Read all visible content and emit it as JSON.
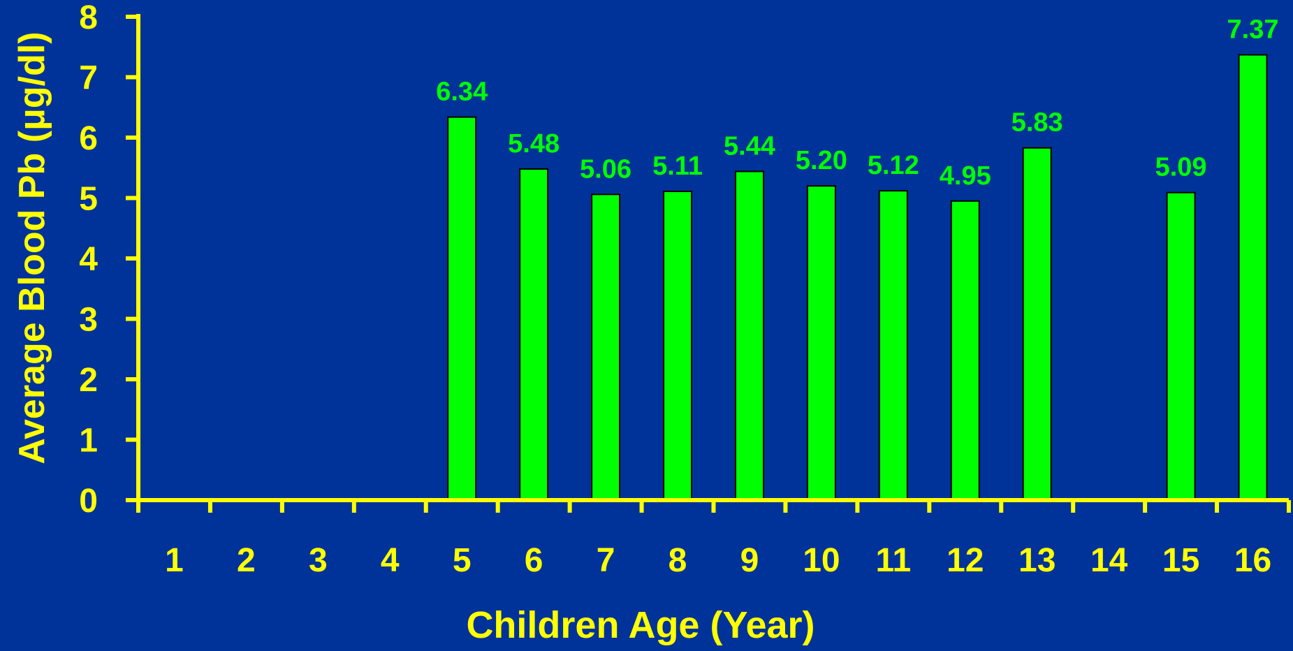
{
  "colors": {
    "background": "#003399",
    "axis": "#ffff00",
    "bar_fill": "#00ff00",
    "bar_stroke": "#000000",
    "data_label": "#00ff00",
    "tick_label": "#ffff00",
    "axis_title": "#ffff00"
  },
  "chart_data": {
    "type": "bar",
    "title": "",
    "xlabel": "Children Age (Year)",
    "ylabel": "Average Blood Pb (μg/dl)",
    "categories": [
      "1",
      "2",
      "3",
      "4",
      "5",
      "6",
      "7",
      "8",
      "9",
      "10",
      "11",
      "12",
      "13",
      "14",
      "15",
      "16"
    ],
    "values": [
      null,
      null,
      null,
      null,
      6.34,
      5.48,
      5.06,
      5.11,
      5.44,
      5.2,
      5.12,
      4.95,
      5.83,
      null,
      5.09,
      7.37
    ],
    "value_labels": [
      "",
      "",
      "",
      "",
      "6.34",
      "5.48",
      "5.06",
      "5.11",
      "5.44",
      "5.20",
      "5.12",
      "4.95",
      "5.83",
      "",
      "5.09",
      "7.37"
    ],
    "ylim": [
      0,
      8
    ],
    "yticks": [
      "0",
      "1",
      "2",
      "3",
      "4",
      "5",
      "6",
      "7",
      "8"
    ],
    "grid": false,
    "legend": "none"
  }
}
